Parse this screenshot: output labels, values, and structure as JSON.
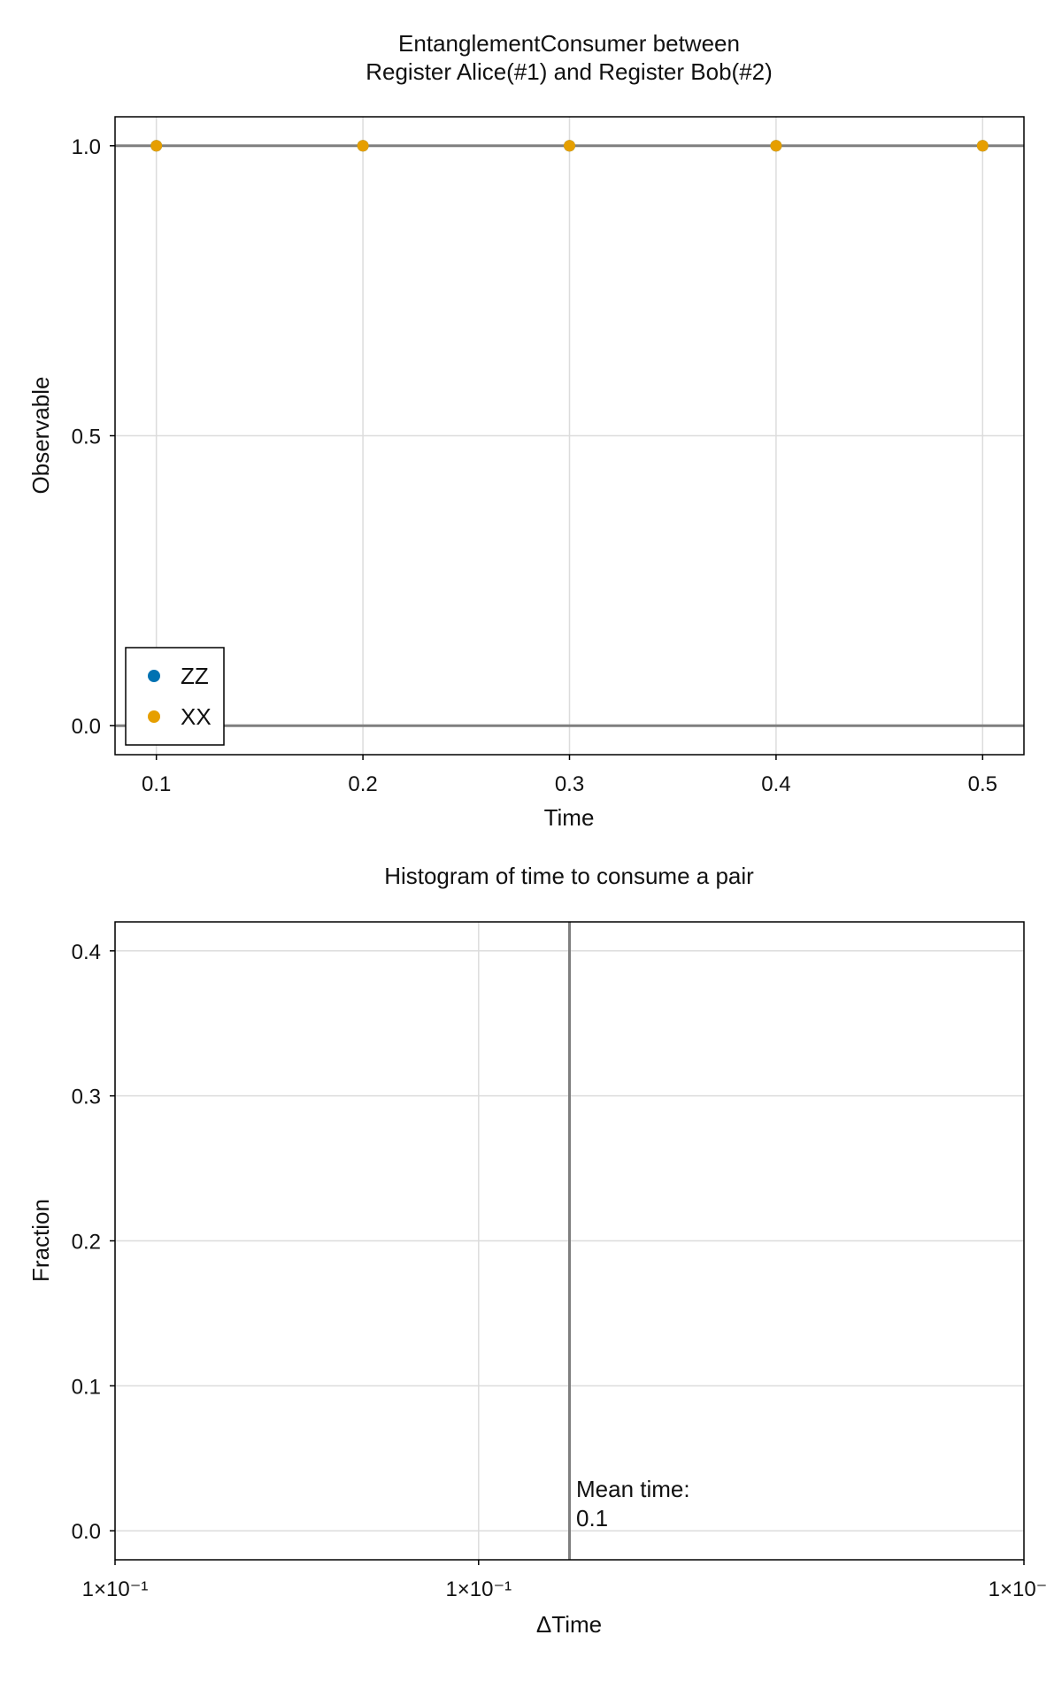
{
  "chart_data": [
    {
      "type": "scatter",
      "title_line1": "EntanglementConsumer between",
      "title_line2": "Register Alice(#1) and Register Bob(#2)",
      "xlabel": "Time",
      "ylabel": "Observable",
      "xlim": [
        0.08,
        0.52
      ],
      "ylim": [
        -0.05,
        1.05
      ],
      "xticks": [
        0.1,
        0.2,
        0.3,
        0.4,
        0.5
      ],
      "xtick_labels": [
        "0.1",
        "0.2",
        "0.3",
        "0.4",
        "0.5"
      ],
      "yticks": [
        0.0,
        0.5,
        1.0
      ],
      "ytick_labels": [
        "0.0",
        "0.5",
        "1.0"
      ],
      "grid": true,
      "hlines": [
        0.0,
        1.0
      ],
      "legend_position": "bottom-left",
      "series": [
        {
          "name": "ZZ",
          "color": "#0072b2",
          "x": [
            0.1,
            0.2,
            0.3,
            0.4,
            0.5
          ],
          "y": [
            1.0,
            1.0,
            1.0,
            1.0,
            1.0
          ]
        },
        {
          "name": "XX",
          "color": "#e69f00",
          "x": [
            0.1,
            0.2,
            0.3,
            0.4,
            0.5
          ],
          "y": [
            1.0,
            1.0,
            1.0,
            1.0,
            1.0
          ]
        }
      ]
    },
    {
      "type": "bar",
      "title": "Histogram of time to consume a pair",
      "xlabel": "ΔTime",
      "ylabel": "Fraction",
      "ylim": [
        -0.02,
        0.42
      ],
      "yticks": [
        0.0,
        0.1,
        0.2,
        0.3,
        0.4
      ],
      "ytick_labels": [
        "0.0",
        "0.1",
        "0.2",
        "0.3",
        "0.4"
      ],
      "xtick_labels": [
        "1×10⁻¹",
        "1×10⁻¹",
        "1×10⁻"
      ],
      "grid": true,
      "mean_line": 0.1,
      "annotation_line1": "Mean time:",
      "annotation_line2": "0.1",
      "values": []
    }
  ]
}
